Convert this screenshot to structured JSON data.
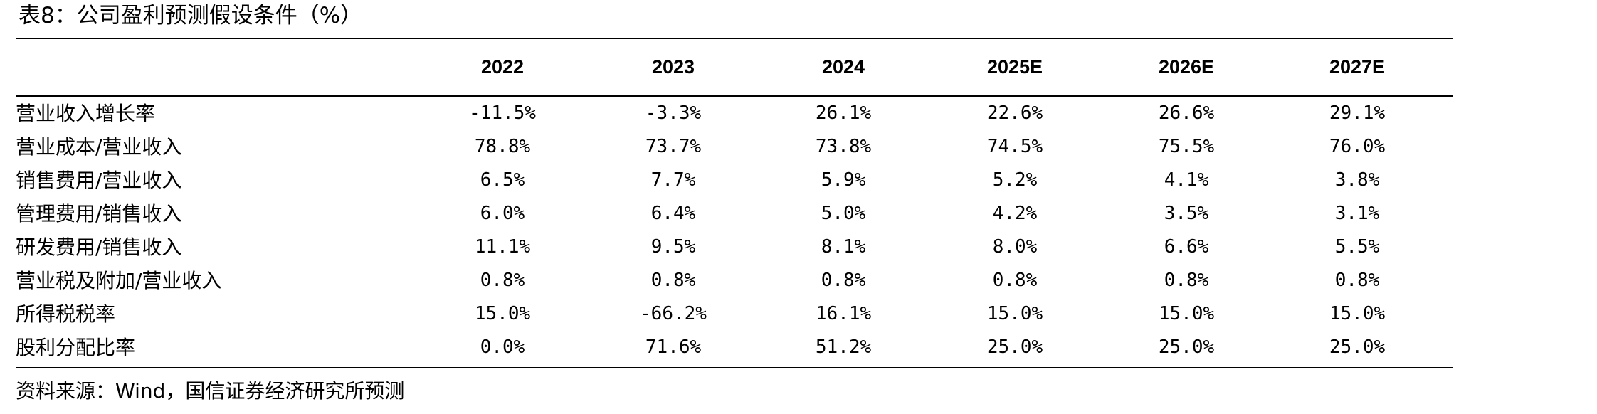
{
  "title": "表8：公司盈利预测假设条件（%）",
  "columns": [
    "2022",
    "2023",
    "2024",
    "2025E",
    "2026E",
    "2027E"
  ],
  "rows": [
    {
      "label": "营业收入增长率",
      "values": [
        "-11.5%",
        "-3.3%",
        "26.1%",
        "22.6%",
        "26.6%",
        "29.1%"
      ]
    },
    {
      "label": "营业成本/营业收入",
      "values": [
        "78.8%",
        "73.7%",
        "73.8%",
        "74.5%",
        "75.5%",
        "76.0%"
      ]
    },
    {
      "label": "销售费用/营业收入",
      "values": [
        "6.5%",
        "7.7%",
        "5.9%",
        "5.2%",
        "4.1%",
        "3.8%"
      ]
    },
    {
      "label": "管理费用/销售收入",
      "values": [
        "6.0%",
        "6.4%",
        "5.0%",
        "4.2%",
        "3.5%",
        "3.1%"
      ]
    },
    {
      "label": "研发费用/销售收入",
      "values": [
        "11.1%",
        "9.5%",
        "8.1%",
        "8.0%",
        "6.6%",
        "5.5%"
      ]
    },
    {
      "label": "营业税及附加/营业收入",
      "values": [
        "0.8%",
        "0.8%",
        "0.8%",
        "0.8%",
        "0.8%",
        "0.8%"
      ]
    },
    {
      "label": "所得税税率",
      "values": [
        "15.0%",
        "-66.2%",
        "16.1%",
        "15.0%",
        "15.0%",
        "15.0%"
      ]
    },
    {
      "label": "股利分配比率",
      "values": [
        "0.0%",
        "71.6%",
        "51.2%",
        "25.0%",
        "25.0%",
        "25.0%"
      ]
    }
  ],
  "source": "资料来源：Wind，国信证券经济研究所预测"
}
